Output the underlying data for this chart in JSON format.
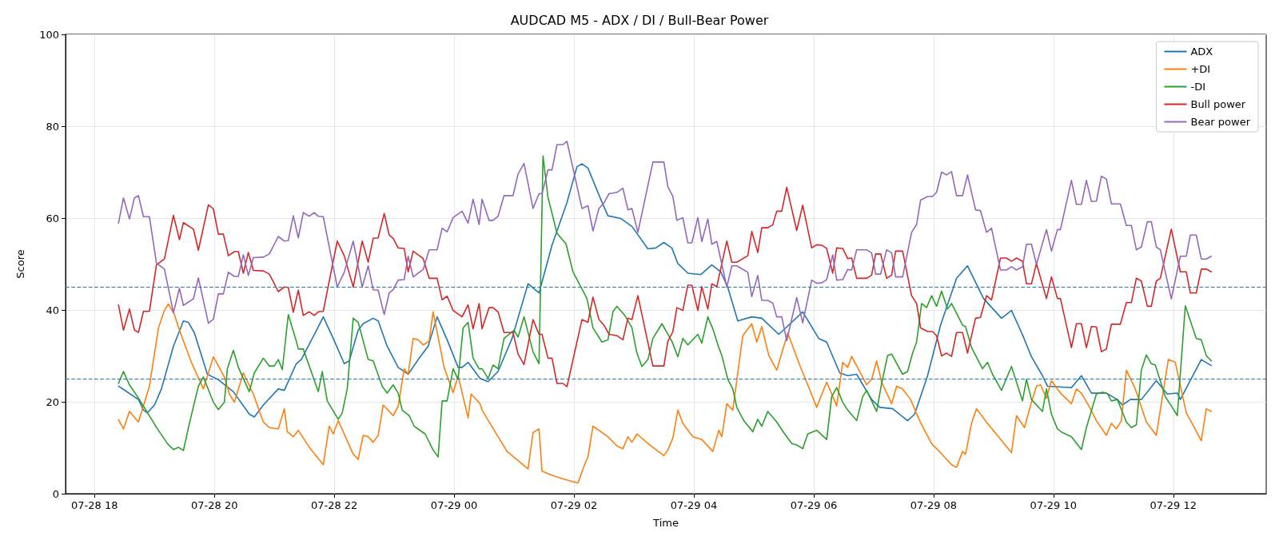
{
  "chart_data": {
    "type": "line",
    "title": "AUDCAD M5 - ADX / DI / Bull-Bear Power",
    "xlabel": "Time",
    "ylabel": "Score",
    "xlim": [
      "--07-28T17:31",
      "--07-29T13:33"
    ],
    "ylim": [
      0,
      100
    ],
    "xticks": [
      {
        "value": "--07-28T18:00",
        "label": "07-28 18"
      },
      {
        "value": "--07-28T20:00",
        "label": "07-28 20"
      },
      {
        "value": "--07-28T22:00",
        "label": "07-28 22"
      },
      {
        "value": "--07-29T00:00",
        "label": "07-29 00"
      },
      {
        "value": "--07-29T02:00",
        "label": "07-29 02"
      },
      {
        "value": "--07-29T04:00",
        "label": "07-29 04"
      },
      {
        "value": "--07-29T06:00",
        "label": "07-29 06"
      },
      {
        "value": "--07-29T08:00",
        "label": "07-29 08"
      },
      {
        "value": "--07-29T10:00",
        "label": "07-29 10"
      },
      {
        "value": "--07-29T12:00",
        "label": "07-29 12"
      }
    ],
    "yticks": [
      0,
      20,
      40,
      60,
      80,
      100
    ],
    "grid": true,
    "legend": "top right",
    "marker": "none",
    "line_style": "solid",
    "ref_lines": [
      {
        "axis": "y",
        "value": 45,
        "label": null,
        "color": "#1f77b4",
        "line_style": "dashed"
      },
      {
        "axis": "y",
        "value": 25,
        "label": null,
        "color": "#1f77b4",
        "line_style": "dashed"
      }
    ],
    "x": [
      "--07-28T18:24",
      "--07-28T18:29",
      "--07-28T18:35",
      "--07-28T18:40",
      "--07-28T18:44",
      "--07-28T18:49",
      "--07-28T18:55",
      "--07-28T19:02",
      "--07-28T19:10",
      "--07-28T19:19",
      "--07-28T19:25",
      "--07-28T19:29",
      "--07-28T19:39",
      "--07-28T19:44",
      "--07-28T19:54",
      "--07-28T19:59",
      "--07-28T20:04",
      "--07-28T20:09",
      "--07-28T20:14",
      "--07-28T20:20",
      "--07-28T20:24",
      "--07-28T20:29",
      "--07-28T20:34",
      "--07-28T20:39",
      "--07-28T20:49",
      "--07-28T20:55",
      "--07-28T21:04",
      "--07-28T21:10",
      "--07-28T21:14",
      "--07-28T21:19",
      "--07-28T21:24",
      "--07-28T21:29",
      "--07-28T21:35",
      "--07-28T21:40",
      "--07-28T21:44",
      "--07-28T21:49",
      "--07-28T22:03",
      "--07-28T22:10",
      "--07-28T22:19",
      "--07-28T22:28",
      "--07-28T22:34",
      "--07-28T22:39",
      "--07-28T22:44",
      "--07-28T22:50",
      "--07-28T22:55",
      "--07-28T22:59",
      "--07-28T23:04",
      "--07-28T23:10",
      "--07-28T23:14",
      "--07-28T23:19",
      "--07-28T23:29",
      "--07-28T23:35",
      "--07-28T23:43",
      "--07-28T23:48",
      "--07-28T23:53",
      "--07-28T23:59",
      "--07-29T00:08",
      "--07-29T00:14",
      "--07-29T00:19",
      "--07-29T00:25",
      "--07-29T00:28",
      "--07-29T00:35",
      "--07-29T00:39",
      "--07-29T00:44",
      "--07-29T00:50",
      "--07-29T00:59",
      "--07-29T01:04",
      "--07-29T01:10",
      "--07-29T01:19",
      "--07-29T01:25",
      "--07-29T01:28",
      "--07-29T01:34",
      "--07-29T01:38",
      "--07-29T01:43",
      "--07-29T01:49",
      "--07-29T01:53",
      "--07-29T02:08",
      "--07-29T02:14",
      "--07-29T02:19",
      "--07-29T02:25",
      "--07-29T02:30",
      "--07-29T02:35",
      "--07-29T02:43",
      "--07-29T02:49",
      "--07-29T02:54",
      "--07-29T02:58",
      "--07-29T03:04",
      "--07-29T03:19",
      "--07-29T03:30",
      "--07-29T03:34",
      "--07-29T03:39",
      "--07-29T03:43",
      "--07-29T03:49",
      "--07-29T03:54",
      "--07-29T03:58",
      "--07-29T04:04",
      "--07-29T04:08",
      "--07-29T04:14",
      "--07-29T04:18",
      "--07-29T04:23",
      "--07-29T04:33",
      "--07-29T04:38",
      "--07-29T04:43",
      "--07-29T04:54",
      "--07-29T04:58",
      "--07-29T05:04",
      "--07-29T05:08",
      "--07-29T05:14",
      "--07-29T05:19",
      "--07-29T05:23",
      "--07-29T05:28",
      "--07-29T05:33",
      "--07-29T05:43",
      "--07-29T05:49",
      "--07-29T05:58",
      "--07-29T06:03",
      "--07-29T06:08",
      "--07-29T06:13",
      "--07-29T06:19",
      "--07-29T06:23",
      "--07-29T06:29",
      "--07-29T06:34",
      "--07-29T06:38",
      "--07-29T06:43",
      "--07-29T06:53",
      "--07-29T06:58",
      "--07-29T07:02",
      "--07-29T07:07",
      "--07-29T07:13",
      "--07-29T07:18",
      "--07-29T07:22",
      "--07-29T07:29",
      "--07-29T07:38",
      "--07-29T07:43",
      "--07-29T07:47",
      "--07-29T07:54",
      "--07-29T07:59",
      "--07-29T08:03",
      "--07-29T08:08",
      "--07-29T08:13",
      "--07-29T08:18",
      "--07-29T08:23",
      "--07-29T08:29",
      "--07-29T08:34",
      "--07-29T08:42",
      "--07-29T08:47",
      "--07-29T08:53",
      "--07-29T08:58",
      "--07-29T09:07",
      "--07-29T09:13",
      "--07-29T09:18",
      "--07-29T09:23",
      "--07-29T09:29",
      "--07-29T09:33",
      "--07-29T09:38",
      "--07-29T09:43",
      "--07-29T09:53",
      "--07-29T09:58",
      "--07-29T10:04",
      "--07-29T10:07",
      "--07-29T10:18",
      "--07-29T10:23",
      "--07-29T10:28",
      "--07-29T10:33",
      "--07-29T10:38",
      "--07-29T10:43",
      "--07-29T10:48",
      "--07-29T10:53",
      "--07-29T10:58",
      "--07-29T11:07",
      "--07-29T11:13",
      "--07-29T11:18",
      "--07-29T11:23",
      "--07-29T11:28",
      "--07-29T11:34",
      "--07-29T11:38",
      "--07-29T11:43",
      "--07-29T11:47",
      "--07-29T11:58",
      "--07-29T12:07",
      "--07-29T12:13",
      "--07-29T12:17",
      "--07-29T12:23",
      "--07-29T12:28",
      "--07-29T12:33",
      "--07-29T12:38"
    ],
    "series": [
      {
        "name": "ADX",
        "color": "#1f77b4",
        "x": [
          "--07-28T18:24",
          "--07-28T18:29",
          "--07-28T18:44",
          "--07-28T18:49",
          "--07-28T18:53",
          "--07-28T19:00",
          "--07-28T19:07",
          "--07-28T19:19",
          "--07-28T19:29",
          "--07-28T19:34",
          "--07-28T19:40",
          "--07-28T19:53",
          "--07-28T20:04",
          "--07-28T20:19",
          "--07-28T20:35",
          "--07-28T20:40",
          "--07-28T20:49",
          "--07-28T21:04",
          "--07-28T21:10",
          "--07-28T21:22",
          "--07-28T21:27",
          "--07-28T21:43",
          "--07-28T21:49",
          "--07-28T21:59",
          "--07-28T22:10",
          "--07-28T22:15",
          "--07-28T22:24",
          "--07-28T22:29",
          "--07-28T22:39",
          "--07-28T22:44",
          "--07-28T22:53",
          "--07-28T23:04",
          "--07-28T23:14",
          "--07-28T23:24",
          "--07-28T23:34",
          "--07-28T23:43",
          "--07-28T23:53",
          "--07-29T00:04",
          "--07-29T00:08",
          "--07-29T00:14",
          "--07-29T00:26",
          "--07-29T00:34",
          "--07-29T00:44",
          "--07-29T00:58",
          "--07-29T01:14",
          "--07-29T01:25",
          "--07-29T01:38",
          "--07-29T01:53",
          "--07-29T02:03",
          "--07-29T02:08",
          "--07-29T02:14",
          "--07-29T02:26",
          "--07-29T02:34",
          "--07-29T02:47",
          "--07-29T02:58",
          "--07-29T03:14",
          "--07-29T03:22",
          "--07-29T03:30",
          "--07-29T03:38",
          "--07-29T03:44",
          "--07-29T03:54",
          "--07-29T04:07",
          "--07-29T04:18",
          "--07-29T04:27",
          "--07-29T04:34",
          "--07-29T04:44",
          "--07-29T04:58",
          "--07-29T05:08",
          "--07-29T05:25",
          "--07-29T05:35",
          "--07-29T05:49",
          "--07-29T06:05",
          "--07-29T06:13",
          "--07-29T06:26",
          "--07-29T06:34",
          "--07-29T06:43",
          "--07-29T06:58",
          "--07-29T07:06",
          "--07-29T07:19",
          "--07-29T07:34",
          "--07-29T07:41",
          "--07-29T07:54",
          "--07-29T08:07",
          "--07-29T08:23",
          "--07-29T08:34",
          "--07-29T08:50",
          "--07-29T09:08",
          "--07-29T09:18",
          "--07-29T09:30",
          "--07-29T09:38",
          "--07-29T09:49",
          "--07-29T09:54",
          "--07-29T10:18",
          "--07-29T10:28",
          "--07-29T10:38",
          "--07-29T10:53",
          "--07-29T11:04",
          "--07-29T11:09",
          "--07-29T11:17",
          "--07-29T11:28",
          "--07-29T11:43",
          "--07-29T11:54",
          "--07-29T12:04",
          "--07-29T12:07",
          "--07-29T12:28",
          "--07-29T12:38"
        ],
        "values": [
          23.4,
          22.7,
          20.5,
          18.2,
          17.6,
          19.3,
          22.8,
          32.1,
          37.6,
          37.3,
          35,
          26,
          24.8,
          22.2,
          17.3,
          16.7,
          19.3,
          22.8,
          22.5,
          28.3,
          29.2,
          35.9,
          38.5,
          33.8,
          28.3,
          28.9,
          35.6,
          37,
          38.2,
          37.6,
          32.1,
          27.5,
          26,
          29.2,
          32.1,
          38.5,
          33.5,
          27.5,
          27.5,
          28.6,
          25.1,
          24.4,
          26.6,
          33.8,
          45.7,
          43.7,
          54.1,
          63.4,
          71.2,
          71.8,
          70.9,
          64.5,
          60.5,
          59.9,
          58.2,
          53.3,
          53.5,
          54.7,
          53.5,
          50.1,
          48,
          47.7,
          49.8,
          48.3,
          44.9,
          37.6,
          38.5,
          38.2,
          34.7,
          36.7,
          39.6,
          33.8,
          33,
          26.3,
          25.7,
          26,
          20.5,
          18.8,
          18.5,
          15.9,
          17.3,
          25.7,
          36.7,
          46.9,
          49.6,
          42.5,
          38.2,
          39.9,
          34.1,
          29.8,
          25.7,
          23.4,
          23.1,
          25.7,
          21.9,
          21.9,
          20.5,
          19.3,
          20.5,
          20.5,
          24.6,
          21.7,
          21.9,
          20.5,
          29.2,
          27.9
        ]
      },
      {
        "name": "+DI",
        "color": "#ff7f0e",
        "x": [
          "--07-28T18:24",
          "--07-28T18:29",
          "--07-28T18:35",
          "--07-28T18:44",
          "--07-28T18:55",
          "--07-28T19:04",
          "--07-28T19:10",
          "--07-28T19:14",
          "--07-28T19:20",
          "--07-28T19:25",
          "--07-28T19:37",
          "--07-28T19:49",
          "--07-28T19:59",
          "--07-28T20:10",
          "--07-28T20:15",
          "--07-28T20:20",
          "--07-28T20:29",
          "--07-28T20:39",
          "--07-28T20:49",
          "--07-28T20:55",
          "--07-28T21:04",
          "--07-28T21:10",
          "--07-28T21:13",
          "--07-28T21:19",
          "--07-28T21:24",
          "--07-28T21:35",
          "--07-28T21:49",
          "--07-28T21:55",
          "--07-28T21:59",
          "--07-28T22:04",
          "--07-28T22:19",
          "--07-28T22:24",
          "--07-28T22:29",
          "--07-28T22:34",
          "--07-28T22:39",
          "--07-28T22:44",
          "--07-28T22:49",
          "--07-28T22:59",
          "--07-28T23:04",
          "--07-28T23:10",
          "--07-28T23:14",
          "--07-28T23:19",
          "--07-28T23:24",
          "--07-28T23:29",
          "--07-28T23:35",
          "--07-28T23:39",
          "--07-28T23:50",
          "--07-28T23:59",
          "--07-29T00:04",
          "--07-29T00:14",
          "--07-29T00:17",
          "--07-29T00:26",
          "--07-29T00:28",
          "--07-29T00:44",
          "--07-29T00:53",
          "--07-29T01:14",
          "--07-29T01:19",
          "--07-29T01:25",
          "--07-29T01:28",
          "--07-29T01:38",
          "--07-29T01:51",
          "--07-29T02:04",
          "--07-29T02:10",
          "--07-29T02:14",
          "--07-29T02:19",
          "--07-29T02:34",
          "--07-29T02:43",
          "--07-29T02:49",
          "--07-29T02:54",
          "--07-29T02:58",
          "--07-29T03:03",
          "--07-29T03:16",
          "--07-29T03:30",
          "--07-29T03:34",
          "--07-29T03:39",
          "--07-29T03:44",
          "--07-29T03:49",
          "--07-29T03:59",
          "--07-29T04:08",
          "--07-29T04:19",
          "--07-29T04:25",
          "--07-29T04:28",
          "--07-29T04:33",
          "--07-29T04:39",
          "--07-29T04:49",
          "--07-29T04:58",
          "--07-29T05:03",
          "--07-29T05:08",
          "--07-29T05:15",
          "--07-29T05:23",
          "--07-29T05:34",
          "--07-29T05:46",
          "--07-29T05:54",
          "--07-29T06:03",
          "--07-29T06:13",
          "--07-29T06:23",
          "--07-29T06:29",
          "--07-29T06:34",
          "--07-29T06:38",
          "--07-29T06:53",
          "--07-29T06:58",
          "--07-29T07:03",
          "--07-29T07:08",
          "--07-29T07:18",
          "--07-29T07:23",
          "--07-29T07:29",
          "--07-29T07:37",
          "--07-29T07:46",
          "--07-29T07:58",
          "--07-29T08:07",
          "--07-29T08:18",
          "--07-29T08:23",
          "--07-29T08:29",
          "--07-29T08:32",
          "--07-29T08:38",
          "--07-29T08:43",
          "--07-29T08:54",
          "--07-29T09:05",
          "--07-29T09:18",
          "--07-29T09:23",
          "--07-29T09:31",
          "--07-29T09:38",
          "--07-29T09:43",
          "--07-29T09:47",
          "--07-29T09:53",
          "--07-29T09:58",
          "--07-29T10:07",
          "--07-29T10:18",
          "--07-29T10:23",
          "--07-29T10:28",
          "--07-29T10:37",
          "--07-29T10:43",
          "--07-29T10:53",
          "--07-29T10:58",
          "--07-29T11:03",
          "--07-29T11:08",
          "--07-29T11:13",
          "--07-29T11:22",
          "--07-29T11:33",
          "--07-29T11:43",
          "--07-29T11:55",
          "--07-29T12:02",
          "--07-29T12:13",
          "--07-29T12:21",
          "--07-29T12:28",
          "--07-29T12:33",
          "--07-29T12:38"
        ],
        "values": [
          16.1,
          14.1,
          17.9,
          15.6,
          23.4,
          36.1,
          39.9,
          41.3,
          39,
          35.6,
          28.6,
          22.8,
          29.8,
          25.4,
          21.7,
          19.9,
          26.3,
          21.7,
          15.6,
          14.4,
          14.1,
          18.5,
          13.5,
          12.4,
          13.8,
          10.1,
          6.3,
          14.7,
          13,
          15.9,
          8.6,
          7.5,
          12.7,
          12.4,
          11.2,
          12.7,
          19.3,
          17,
          19,
          27.2,
          26,
          33.8,
          33.5,
          32.4,
          33.2,
          39.6,
          27.5,
          22,
          25.7,
          16.5,
          21.7,
          19.6,
          18.2,
          12.4,
          9.2,
          5.4,
          13.3,
          14.1,
          4.9,
          4,
          3.1,
          2.3,
          6,
          8,
          14.7,
          12.4,
          10.4,
          9.8,
          12.4,
          11.2,
          13,
          10.6,
          8.3,
          9.5,
          12.1,
          18.2,
          15.3,
          12.4,
          11.8,
          9.2,
          13.8,
          12.4,
          19.6,
          18.2,
          34.4,
          37,
          33,
          36.4,
          30.1,
          26.9,
          35,
          28,
          23.7,
          18.8,
          24.3,
          19.1,
          28.6,
          27.5,
          29.9,
          23.7,
          24.9,
          28.9,
          24.3,
          19.6,
          23.4,
          22.8,
          20.5,
          15.9,
          10.9,
          8.9,
          6.3,
          5.7,
          9.2,
          8.6,
          15.3,
          18.5,
          15.3,
          12.4,
          8.9,
          17,
          14.4,
          19.9,
          23.4,
          23.7,
          20.8,
          24.6,
          21.9,
          19.6,
          22.8,
          21.9,
          18.5,
          15.9,
          12.7,
          15.3,
          14.1,
          15.9,
          26.9,
          22.8,
          15.6,
          12.7,
          29.2,
          28.6,
          17.6,
          14.4,
          11.5,
          18.5,
          17.9
        ]
      },
      {
        "name": "-DI",
        "color": "#2ca02c",
        "x": [
          "--07-28T18:24",
          "--07-28T18:29",
          "--07-28T18:35",
          "--07-28T18:44",
          "--07-28T19:03",
          "--07-28T19:13",
          "--07-28T19:19",
          "--07-28T19:24",
          "--07-28T19:29",
          "--07-28T19:35",
          "--07-28T19:44",
          "--07-28T19:49",
          "--07-28T19:59",
          "--07-28T20:04",
          "--07-28T20:10",
          "--07-28T20:13",
          "--07-28T20:19",
          "--07-28T20:24",
          "--07-28T20:35",
          "--07-28T20:40",
          "--07-28T20:49",
          "--07-28T20:55",
          "--07-28T21:00",
          "--07-28T21:04",
          "--07-28T21:08",
          "--07-28T21:14",
          "--07-28T21:22",
          "--07-28T21:24",
          "--07-28T21:29",
          "--07-28T21:44",
          "--07-28T21:48",
          "--07-28T21:53",
          "--07-28T22:04",
          "--07-28T22:08",
          "--07-28T22:13",
          "--07-28T22:19",
          "--07-28T22:24",
          "--07-28T22:34",
          "--07-28T22:39",
          "--07-28T22:48",
          "--07-28T22:53",
          "--07-28T22:59",
          "--07-28T23:04",
          "--07-28T23:08",
          "--07-28T23:15",
          "--07-28T23:20",
          "--07-28T23:31",
          "--07-28T23:39",
          "--07-28T23:44",
          "--07-28T23:48",
          "--07-28T23:53",
          "--07-28T23:59",
          "--07-29T00:04",
          "--07-29T00:09",
          "--07-29T00:14",
          "--07-29T00:19",
          "--07-29T00:25",
          "--07-29T00:28",
          "--07-29T00:34",
          "--07-29T00:39",
          "--07-29T00:44",
          "--07-29T00:50",
          "--07-29T01:00",
          "--07-29T01:04",
          "--07-29T01:10",
          "--07-29T01:19",
          "--07-29T01:25",
          "--07-29T01:29",
          "--07-29T01:34",
          "--07-29T01:43",
          "--07-29T01:52",
          "--07-29T01:59",
          "--07-29T02:13",
          "--07-29T02:19",
          "--07-29T02:28",
          "--07-29T02:34",
          "--07-29T02:39",
          "--07-29T02:43",
          "--07-29T02:51",
          "--07-29T02:58",
          "--07-29T03:03",
          "--07-29T03:08",
          "--07-29T03:14",
          "--07-29T03:19",
          "--07-29T03:28",
          "--07-29T03:38",
          "--07-29T03:44",
          "--07-29T03:49",
          "--07-29T03:54",
          "--07-29T04:04",
          "--07-29T04:08",
          "--07-29T04:14",
          "--07-29T04:19",
          "--07-29T04:25",
          "--07-29T04:28",
          "--07-29T04:34",
          "--07-29T04:39",
          "--07-29T04:43",
          "--07-29T04:50",
          "--07-29T04:59",
          "--07-29T05:04",
          "--07-29T05:08",
          "--07-29T05:14",
          "--07-29T05:23",
          "--07-29T05:30",
          "--07-29T05:38",
          "--07-29T05:43",
          "--07-29T05:49",
          "--07-29T05:54",
          "--07-29T06:03",
          "--07-29T06:13",
          "--07-29T06:18",
          "--07-29T06:23",
          "--07-29T06:29",
          "--07-29T06:34",
          "--07-29T06:43",
          "--07-29T06:49",
          "--07-29T06:53",
          "--07-29T07:03",
          "--07-29T07:08",
          "--07-29T07:14",
          "--07-29T07:18",
          "--07-29T07:29",
          "--07-29T07:34",
          "--07-29T07:39",
          "--07-29T07:43",
          "--07-29T07:48",
          "--07-29T07:53",
          "--07-29T07:58",
          "--07-29T08:03",
          "--07-29T08:08",
          "--07-29T08:14",
          "--07-29T08:18",
          "--07-29T08:29",
          "--07-29T08:32",
          "--07-29T08:38",
          "--07-29T08:49",
          "--07-29T08:54",
          "--07-29T08:59",
          "--07-29T09:08",
          "--07-29T09:18",
          "--07-29T09:29",
          "--07-29T09:33",
          "--07-29T09:38",
          "--07-29T09:49",
          "--07-29T09:53",
          "--07-29T09:58",
          "--07-29T10:04",
          "--07-29T10:09",
          "--07-29T10:18",
          "--07-29T10:28",
          "--07-29T10:33",
          "--07-29T10:43",
          "--07-29T10:49",
          "--07-29T10:54",
          "--07-29T10:58",
          "--07-29T11:04",
          "--07-29T11:13",
          "--07-29T11:18",
          "--07-29T11:23",
          "--07-29T11:28",
          "--07-29T11:33",
          "--07-29T11:38",
          "--07-29T11:42",
          "--07-29T11:52",
          "--07-29T11:58",
          "--07-29T12:04",
          "--07-29T12:12",
          "--07-29T12:23",
          "--07-29T12:28",
          "--07-29T12:33",
          "--07-29T12:38"
        ],
        "values": [
          24,
          26.6,
          23.7,
          20.8,
          14.1,
          10.9,
          9.6,
          10.1,
          9.4,
          15.3,
          23.4,
          25.4,
          19.9,
          18.3,
          19.9,
          27.2,
          31.2,
          27.5,
          22.2,
          26.3,
          29.5,
          27.8,
          27.8,
          29.2,
          27,
          39,
          33.2,
          31.5,
          31.5,
          22.2,
          26.6,
          20.2,
          16.2,
          17.6,
          22.8,
          38.2,
          37.3,
          29.2,
          28.9,
          23.4,
          21.9,
          23.7,
          21.9,
          18.2,
          17,
          14.7,
          13,
          9.5,
          8,
          20.2,
          20.2,
          27.2,
          24.9,
          36.1,
          37.3,
          29.5,
          27.2,
          27.2,
          25.1,
          28,
          27.2,
          33.8,
          35.6,
          34.1,
          38.5,
          30.9,
          28.3,
          73.5,
          64.5,
          56.7,
          54.4,
          48.3,
          42.5,
          36.1,
          33,
          33.5,
          39.6,
          40.8,
          38.8,
          36.1,
          30.6,
          27.7,
          29.2,
          33.8,
          37,
          33.2,
          29.8,
          33.8,
          32.4,
          34.7,
          32.8,
          38.5,
          35.9,
          31.8,
          30.1,
          24.9,
          22.8,
          18.8,
          15.9,
          13.5,
          16.2,
          14.7,
          17.9,
          15.6,
          13.3,
          10.9,
          10.6,
          9.8,
          13,
          13.8,
          11.8,
          21.1,
          23.1,
          19.9,
          18.2,
          15.9,
          21.1,
          22.5,
          17.9,
          24,
          30.1,
          30.4,
          26,
          26.6,
          30.6,
          33,
          41.4,
          40.5,
          43.1,
          40.8,
          44.1,
          40.2,
          41.4,
          36.7,
          36.4,
          31.8,
          27.2,
          28.6,
          26,
          22.5,
          27.7,
          20.2,
          24.9,
          20.5,
          17.9,
          22.8,
          17.3,
          14.1,
          13.3,
          12.4,
          9.6,
          14.4,
          21.7,
          22.1,
          21.8,
          20.2,
          20.5,
          15.6,
          14.4,
          15,
          26.9,
          30.2,
          28.3,
          28,
          21.1,
          19.1,
          17,
          40.9,
          33.8,
          33.5,
          30.1,
          28.9
        ]
      },
      {
        "name": "Bull power",
        "color": "#d62728",
        "values": [
          41.1,
          35.6,
          40.2,
          35.6,
          35.1,
          39.7,
          39.7,
          49.8,
          51.1,
          60.6,
          55.3,
          59,
          57.6,
          53,
          62.9,
          62,
          56.5,
          56.5,
          51.8,
          52.7,
          52.7,
          48,
          52.5,
          48.6,
          48.5,
          47.8,
          44,
          45,
          44.9,
          39.5,
          44.3,
          38.8,
          39.6,
          38.8,
          39.6,
          39.7,
          55,
          51.8,
          45,
          55,
          50.4,
          55.6,
          55.7,
          61,
          56.3,
          55.6,
          53.5,
          53.4,
          48.3,
          52.8,
          51.2,
          46.9,
          46.9,
          42.2,
          43,
          39.9,
          38.5,
          41.1,
          35.9,
          41.4,
          35.9,
          40.5,
          40.5,
          39.6,
          35.1,
          35.1,
          30.4,
          28.1,
          37.9,
          34.7,
          34.7,
          29.5,
          29.5,
          24,
          24,
          23.3,
          37.9,
          37.3,
          42.8,
          37.9,
          36.7,
          34.7,
          34.4,
          33.5,
          38.2,
          37.9,
          43.1,
          27.8,
          27.8,
          33.2,
          35.3,
          40.5,
          39.9,
          45.4,
          45.4,
          39.9,
          45.1,
          40.2,
          45.7,
          45.1,
          55,
          50.4,
          50.4,
          51.8,
          57.1,
          52.5,
          57.9,
          57.9,
          58.5,
          61.5,
          61.5,
          66.7,
          57.3,
          62.8,
          53.5,
          54.2,
          54.1,
          53.4,
          48,
          53.5,
          53.4,
          51.2,
          51.3,
          46.9,
          46.9,
          47.6,
          52.2,
          52.2,
          46.9,
          47.6,
          52.8,
          52.8,
          43.1,
          41.4,
          36.1,
          35.3,
          35.3,
          34.4,
          30,
          30.6,
          29.9,
          35.1,
          35.1,
          30.6,
          38.2,
          38.4,
          43.1,
          42.2,
          51.3,
          51.3,
          50.6,
          51.3,
          50.6,
          45.7,
          45.7,
          50.1,
          42.5,
          47.2,
          42.5,
          42.5,
          31.8,
          37,
          37,
          31.8,
          36.4,
          36.3,
          30.9,
          31.5,
          36.9,
          36.9,
          41.6,
          41.6,
          46.9,
          46.3,
          40.8,
          40.8,
          46.3,
          46.9,
          57.6,
          48.3,
          48.3,
          43.7,
          43.7,
          48.9,
          48.9,
          48.3
        ]
      },
      {
        "name": "Bear power",
        "color": "#9467bd",
        "values": [
          58.9,
          64.4,
          59.8,
          64.4,
          64.9,
          60.3,
          60.3,
          50.2,
          48.9,
          39.4,
          44.7,
          41,
          42.4,
          47,
          37.1,
          38,
          43.5,
          43.5,
          48.2,
          47.3,
          47.3,
          52,
          47.5,
          51.4,
          51.5,
          52.2,
          56,
          55,
          55.1,
          60.5,
          55.7,
          61.2,
          60.4,
          61.2,
          60.4,
          60.3,
          45,
          48.2,
          55,
          45,
          49.6,
          44.4,
          44.3,
          39,
          43.7,
          44.4,
          46.5,
          46.6,
          51.7,
          47.2,
          48.8,
          53.1,
          53.1,
          57.8,
          57,
          60.1,
          61.5,
          58.9,
          64.1,
          58.6,
          64.1,
          59.5,
          59.5,
          60.4,
          64.9,
          64.9,
          69.6,
          71.9,
          62.1,
          65.3,
          65.3,
          70.5,
          70.5,
          76,
          76,
          76.7,
          62.1,
          62.7,
          57.2,
          62.1,
          63.3,
          65.3,
          65.6,
          66.5,
          61.8,
          62.1,
          56.9,
          72.2,
          72.2,
          66.8,
          64.7,
          59.5,
          60.1,
          54.6,
          54.6,
          60.1,
          54.9,
          59.8,
          54.3,
          54.9,
          45,
          49.6,
          49.6,
          48.2,
          42.9,
          47.5,
          42.1,
          42.1,
          41.5,
          38.5,
          38.5,
          33.3,
          42.7,
          37.2,
          46.5,
          45.8,
          45.9,
          46.6,
          52,
          46.5,
          46.6,
          48.8,
          48.7,
          53.1,
          53.1,
          52.4,
          47.8,
          47.8,
          53.1,
          52.4,
          47.2,
          47.2,
          56.9,
          58.6,
          63.9,
          64.7,
          64.7,
          65.6,
          70,
          69.4,
          70.1,
          64.9,
          64.9,
          69.4,
          61.8,
          61.6,
          56.9,
          57.8,
          48.7,
          48.7,
          49.4,
          48.7,
          49.4,
          54.3,
          54.3,
          49.9,
          57.5,
          52.8,
          57.5,
          57.5,
          68.2,
          63,
          63,
          68.2,
          63.6,
          63.7,
          69.1,
          68.5,
          63.1,
          63.1,
          58.4,
          58.4,
          53.1,
          53.7,
          59.2,
          59.2,
          53.7,
          53.1,
          42.4,
          51.7,
          51.7,
          56.3,
          56.3,
          51.1,
          51.1,
          51.7
        ]
      }
    ]
  }
}
